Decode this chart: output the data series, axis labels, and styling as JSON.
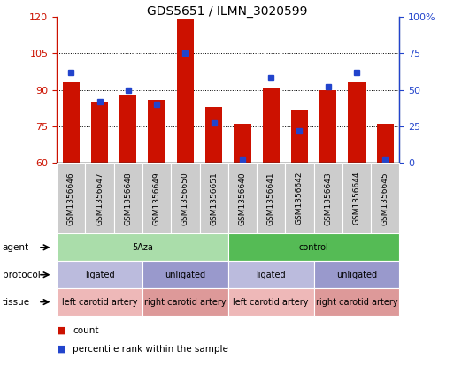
{
  "title": "GDS5651 / ILMN_3020599",
  "samples": [
    "GSM1356646",
    "GSM1356647",
    "GSM1356648",
    "GSM1356649",
    "GSM1356650",
    "GSM1356651",
    "GSM1356640",
    "GSM1356641",
    "GSM1356642",
    "GSM1356643",
    "GSM1356644",
    "GSM1356645"
  ],
  "counts": [
    93,
    85,
    88,
    86,
    119,
    83,
    76,
    91,
    82,
    90,
    93,
    76
  ],
  "percentiles": [
    62,
    42,
    50,
    40,
    75,
    27,
    2,
    58,
    22,
    52,
    62,
    2
  ],
  "ylim_left": [
    60,
    120
  ],
  "ylim_right": [
    0,
    100
  ],
  "yticks_left": [
    60,
    75,
    90,
    105,
    120
  ],
  "yticks_right": [
    0,
    25,
    50,
    75,
    100
  ],
  "bar_color": "#cc1100",
  "dot_color": "#2244cc",
  "agent_segs": [
    {
      "text": "5Aza",
      "start": 0,
      "end": 5,
      "color": "#aaddaa"
    },
    {
      "text": "control",
      "start": 6,
      "end": 11,
      "color": "#55bb55"
    }
  ],
  "protocol_segs": [
    {
      "text": "ligated",
      "start": 0,
      "end": 2,
      "color": "#bbbbdd"
    },
    {
      "text": "unligated",
      "start": 3,
      "end": 5,
      "color": "#9999cc"
    },
    {
      "text": "ligated",
      "start": 6,
      "end": 8,
      "color": "#bbbbdd"
    },
    {
      "text": "unligated",
      "start": 9,
      "end": 11,
      "color": "#9999cc"
    }
  ],
  "tissue_segs": [
    {
      "text": "left carotid artery",
      "start": 0,
      "end": 2,
      "color": "#eeb8b8"
    },
    {
      "text": "right carotid artery",
      "start": 3,
      "end": 5,
      "color": "#dd9999"
    },
    {
      "text": "left carotid artery",
      "start": 6,
      "end": 8,
      "color": "#eeb8b8"
    },
    {
      "text": "right carotid artery",
      "start": 9,
      "end": 11,
      "color": "#dd9999"
    }
  ],
  "row_labels": [
    "agent",
    "protocol",
    "tissue"
  ],
  "legend_labels": [
    "count",
    "percentile rank within the sample"
  ]
}
